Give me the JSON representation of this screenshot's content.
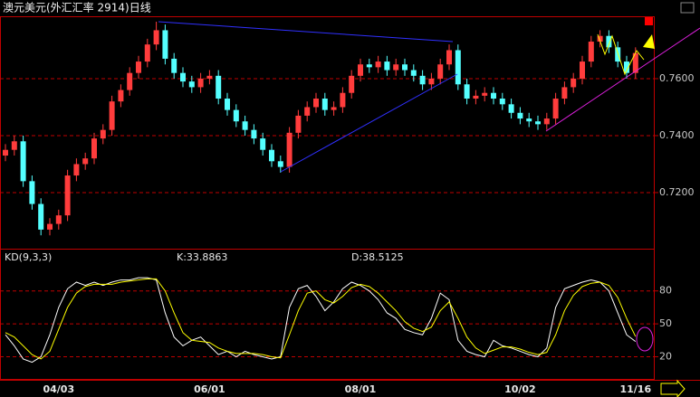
{
  "chart_data": [
    {
      "type": "candlestick",
      "title": "澳元美元(外汇汇率 2914)日线",
      "categories": [
        null,
        null,
        null,
        null,
        null,
        null,
        "04/03",
        null,
        null,
        null,
        null,
        null,
        null,
        null,
        null,
        null,
        null,
        null,
        null,
        null,
        null,
        null,
        null,
        "06/01",
        null,
        null,
        null,
        null,
        null,
        null,
        null,
        null,
        null,
        null,
        null,
        null,
        null,
        null,
        null,
        null,
        "08/01",
        null,
        null,
        null,
        null,
        null,
        null,
        null,
        null,
        null,
        null,
        null,
        null,
        null,
        null,
        null,
        null,
        null,
        "10/02",
        null,
        null,
        null,
        null,
        null,
        null,
        null,
        null,
        null,
        null,
        null,
        null,
        "11/16"
      ],
      "open": [
        0.733,
        0.735,
        0.738,
        0.724,
        0.716,
        0.707,
        0.709,
        0.712,
        0.726,
        0.73,
        0.732,
        0.739,
        0.742,
        0.752,
        0.756,
        0.762,
        0.766,
        0.772,
        0.777,
        0.767,
        0.762,
        0.759,
        0.757,
        0.76,
        0.761,
        0.753,
        0.749,
        0.745,
        0.742,
        0.739,
        0.735,
        0.731,
        0.729,
        0.741,
        0.747,
        0.75,
        0.753,
        0.749,
        0.75,
        0.755,
        0.761,
        0.765,
        0.764,
        0.766,
        0.763,
        0.765,
        0.763,
        0.761,
        0.758,
        0.76,
        0.765,
        0.77,
        0.758,
        0.753,
        0.754,
        0.755,
        0.753,
        0.751,
        0.748,
        0.746,
        0.745,
        0.744,
        0.746,
        0.753,
        0.757,
        0.76,
        0.766,
        0.773,
        0.775,
        0.771,
        0.766,
        0.762
      ],
      "high": [
        0.737,
        0.74,
        0.74,
        0.726,
        0.718,
        0.711,
        0.714,
        0.728,
        0.732,
        0.734,
        0.741,
        0.744,
        0.754,
        0.758,
        0.764,
        0.768,
        0.774,
        0.78,
        0.779,
        0.769,
        0.764,
        0.761,
        0.762,
        0.763,
        0.763,
        0.755,
        0.751,
        0.747,
        0.744,
        0.741,
        0.737,
        0.733,
        0.743,
        0.749,
        0.752,
        0.755,
        0.755,
        0.752,
        0.757,
        0.763,
        0.767,
        0.767,
        0.768,
        0.768,
        0.767,
        0.767,
        0.765,
        0.763,
        0.762,
        0.767,
        0.772,
        0.772,
        0.76,
        0.756,
        0.757,
        0.757,
        0.755,
        0.753,
        0.75,
        0.748,
        0.747,
        0.748,
        0.755,
        0.759,
        0.762,
        0.768,
        0.775,
        0.777,
        0.777,
        0.773,
        0.768,
        0.771
      ],
      "low": [
        0.731,
        0.733,
        0.722,
        0.714,
        0.705,
        0.705,
        0.707,
        0.71,
        0.724,
        0.728,
        0.73,
        0.737,
        0.74,
        0.75,
        0.754,
        0.76,
        0.764,
        0.77,
        0.765,
        0.76,
        0.757,
        0.755,
        0.755,
        0.758,
        0.751,
        0.747,
        0.743,
        0.74,
        0.737,
        0.733,
        0.729,
        0.727,
        0.727,
        0.739,
        0.745,
        0.748,
        0.747,
        0.747,
        0.748,
        0.753,
        0.759,
        0.762,
        0.762,
        0.761,
        0.761,
        0.761,
        0.759,
        0.756,
        0.756,
        0.758,
        0.763,
        0.756,
        0.751,
        0.751,
        0.752,
        0.751,
        0.749,
        0.746,
        0.744,
        0.743,
        0.742,
        0.742,
        0.744,
        0.751,
        0.755,
        0.758,
        0.764,
        0.771,
        0.769,
        0.764,
        0.76,
        0.76
      ],
      "close": [
        0.735,
        0.738,
        0.724,
        0.716,
        0.707,
        0.709,
        0.712,
        0.726,
        0.73,
        0.732,
        0.739,
        0.742,
        0.752,
        0.756,
        0.762,
        0.766,
        0.772,
        0.777,
        0.767,
        0.762,
        0.759,
        0.757,
        0.76,
        0.761,
        0.753,
        0.749,
        0.745,
        0.742,
        0.739,
        0.735,
        0.731,
        0.729,
        0.741,
        0.747,
        0.75,
        0.753,
        0.749,
        0.75,
        0.755,
        0.761,
        0.765,
        0.764,
        0.766,
        0.763,
        0.765,
        0.763,
        0.761,
        0.758,
        0.76,
        0.765,
        0.77,
        0.758,
        0.753,
        0.754,
        0.755,
        0.753,
        0.751,
        0.748,
        0.746,
        0.745,
        0.744,
        0.746,
        0.753,
        0.757,
        0.76,
        0.766,
        0.773,
        0.775,
        0.771,
        0.766,
        0.762,
        0.769
      ],
      "up_color": "#ff3c3c",
      "down_color": "#54ffff",
      "ylim": [
        0.7003,
        0.7819
      ],
      "yticks": [
        {
          "value": 0.72,
          "label": "0.7200"
        },
        {
          "value": 0.74,
          "label": "0.7400"
        },
        {
          "value": 0.76,
          "label": "0.7600"
        }
      ],
      "grid": true
    },
    {
      "type": "line",
      "title": "KD(9,3,3)",
      "series": [
        {
          "name": "K:33.8863",
          "color": "#ffffff",
          "values": [
            40,
            30,
            18,
            15,
            20,
            40,
            65,
            82,
            88,
            85,
            88,
            85,
            88,
            90,
            90,
            92,
            92,
            90,
            60,
            38,
            30,
            35,
            38,
            30,
            22,
            25,
            20,
            25,
            22,
            20,
            18,
            20,
            65,
            82,
            85,
            75,
            62,
            70,
            82,
            88,
            85,
            80,
            72,
            60,
            55,
            45,
            42,
            40,
            55,
            78,
            72,
            35,
            25,
            22,
            20,
            35,
            30,
            28,
            25,
            22,
            20,
            28,
            65,
            82,
            85,
            88,
            90,
            88,
            80,
            60,
            40,
            33.8863
          ]
        },
        {
          "name": "D:38.5125",
          "color": "#ffff00",
          "values": [
            42,
            38,
            30,
            22,
            18,
            25,
            45,
            65,
            78,
            84,
            86,
            86,
            86,
            88,
            89,
            90,
            91,
            91,
            80,
            60,
            42,
            35,
            34,
            33,
            28,
            25,
            23,
            23,
            23,
            22,
            20,
            19,
            40,
            62,
            78,
            80,
            72,
            69,
            75,
            83,
            86,
            84,
            78,
            70,
            62,
            52,
            46,
            43,
            47,
            62,
            70,
            55,
            38,
            28,
            23,
            26,
            29,
            29,
            27,
            24,
            22,
            24,
            40,
            62,
            76,
            84,
            87,
            88,
            85,
            74,
            55,
            38.5125
          ]
        }
      ],
      "ylim": [
        -1,
        102
      ],
      "yticks": [
        20,
        50,
        80
      ],
      "grid": true
    }
  ]
}
